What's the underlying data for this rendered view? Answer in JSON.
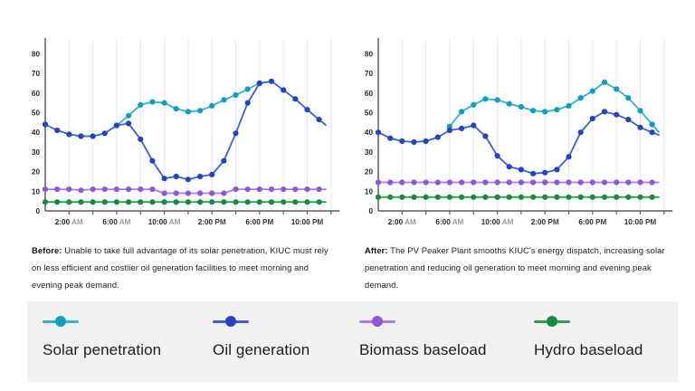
{
  "charts": [
    {
      "id": "before",
      "caption_label": "Before:",
      "caption_text": " Unable to take full advantage of its solar penetration, KIUC must rely on less efficient and costlier oil generation facilities to meet morning and evening peak demand."
    },
    {
      "id": "after",
      "caption_label": "After:",
      "caption_text": " The PV Peaker Plant smooths KIUC's energy dispatch, increasing solar penetration and reducing oil generation to meet morning and evening peak demand."
    }
  ],
  "chart_data": [
    {
      "type": "line",
      "name": "Before",
      "x_unit": "hour of day (0-23)",
      "x_tick_hours": [
        2,
        6,
        10,
        14,
        18,
        22
      ],
      "x_tick_labels": [
        "2:00 AM",
        "6:00 AM",
        "10:00 AM",
        "2:00 PM",
        "6:00 PM",
        "10:00 PM"
      ],
      "yticks": [
        0,
        10,
        20,
        30,
        40,
        50,
        60,
        70,
        80
      ],
      "ylim": [
        0,
        88
      ],
      "grid": "vertical",
      "series": [
        {
          "name": "Solar penetration",
          "line_color": "#35b2c9",
          "dot_color": "#0d9fbd",
          "start_hour": 6,
          "values": [
            43.5,
            48.5,
            54,
            55.5,
            55,
            52,
            50.5,
            51,
            53.5,
            56.5,
            59,
            62,
            65
          ]
        },
        {
          "name": "Oil generation",
          "line_color": "#3c5ed8",
          "dot_color": "#2443c4",
          "start_hour": 0,
          "values": [
            44,
            41,
            39,
            38,
            38,
            39.5,
            43.5,
            44.5,
            36.5,
            25.5,
            16.5,
            17.5,
            16,
            17.5,
            18.5,
            25.5,
            39.5,
            55,
            65,
            66,
            61.5,
            57,
            51.5,
            46.5
          ]
        },
        {
          "name": "Biomass baseload",
          "line_color": "#a97fe8",
          "dot_color": "#8f55da",
          "start_hour": 0,
          "values": [
            11,
            11,
            11,
            10.5,
            11,
            11,
            11,
            11,
            11,
            11,
            9,
            9,
            9,
            9,
            9,
            9,
            11,
            11,
            11,
            11,
            11,
            11,
            11,
            11
          ]
        },
        {
          "name": "Hydro baseload",
          "line_color": "#2da351",
          "dot_color": "#148c3c",
          "start_hour": 0,
          "values": [
            4.5,
            4.5,
            4.5,
            4.5,
            4.5,
            4.5,
            4.5,
            4.5,
            4.5,
            4.5,
            4.5,
            4.5,
            4.5,
            4.5,
            4.5,
            4.5,
            4.5,
            4.5,
            4.5,
            4.5,
            4.5,
            4.5,
            4.5,
            4.5
          ]
        }
      ]
    },
    {
      "type": "line",
      "name": "After",
      "x_unit": "hour of day (0-23)",
      "x_tick_hours": [
        2,
        6,
        10,
        14,
        18,
        22
      ],
      "x_tick_labels": [
        "2:00 AM",
        "6:00 AM",
        "10:00 AM",
        "2:00 PM",
        "6:00 PM",
        "10:00 PM"
      ],
      "yticks": [
        0,
        10,
        20,
        30,
        40,
        50,
        60,
        70,
        80
      ],
      "ylim": [
        0,
        88
      ],
      "grid": "vertical",
      "series": [
        {
          "name": "Solar penetration",
          "line_color": "#35b2c9",
          "dot_color": "#0d9fbd",
          "start_hour": 6,
          "values": [
            43,
            50.5,
            54,
            57,
            56.5,
            54.5,
            53,
            51,
            50.5,
            51.5,
            53.5,
            57.5,
            61,
            65.5,
            62,
            57.5,
            51,
            44
          ]
        },
        {
          "name": "Oil generation",
          "line_color": "#3c5ed8",
          "dot_color": "#2443c4",
          "start_hour": 0,
          "values": [
            40,
            37,
            35.5,
            35,
            35.5,
            37.5,
            41,
            42,
            43.5,
            38,
            28,
            22.5,
            21,
            19,
            19.5,
            21,
            27.5,
            40,
            47,
            50.5,
            49,
            46.5,
            42.5,
            40
          ]
        },
        {
          "name": "Biomass baseload",
          "line_color": "#a97fe8",
          "dot_color": "#8f55da",
          "start_hour": 0,
          "values": [
            14.5,
            14.5,
            14.5,
            14.5,
            14.5,
            14.5,
            14.5,
            14.5,
            14.5,
            14.5,
            14.5,
            14.5,
            14.5,
            14.5,
            14.5,
            14.5,
            14.5,
            14.5,
            14.5,
            14.5,
            14.5,
            14.5,
            14.5,
            14.5
          ]
        },
        {
          "name": "Hydro baseload",
          "line_color": "#2da351",
          "dot_color": "#148c3c",
          "start_hour": 0,
          "values": [
            7,
            7,
            7,
            7,
            7,
            7,
            7,
            7,
            7,
            7,
            7,
            7,
            7,
            7,
            7,
            7,
            7,
            7,
            7,
            7,
            7,
            7,
            7,
            7
          ]
        }
      ]
    }
  ],
  "legend": {
    "items": [
      {
        "label": "Solar penetration",
        "line_color": "#35b2c9",
        "dot_color": "#0d9fbd"
      },
      {
        "label": "Oil generation",
        "line_color": "#3c5ed8",
        "dot_color": "#2443c4"
      },
      {
        "label": "Biomass baseload",
        "line_color": "#a97fe8",
        "dot_color": "#8f55da"
      },
      {
        "label": "Hydro baseload",
        "line_color": "#2da351",
        "dot_color": "#148c3c"
      }
    ]
  },
  "style_colors": {
    "axis": "#5f5f5f",
    "grid": "#e8e8e8",
    "tick_label": "#2b2b2b",
    "am_suffix": "#9b9b9b",
    "pm_suffix": "#3a3a3a",
    "legend_band_bg": "#f1f1f2"
  }
}
